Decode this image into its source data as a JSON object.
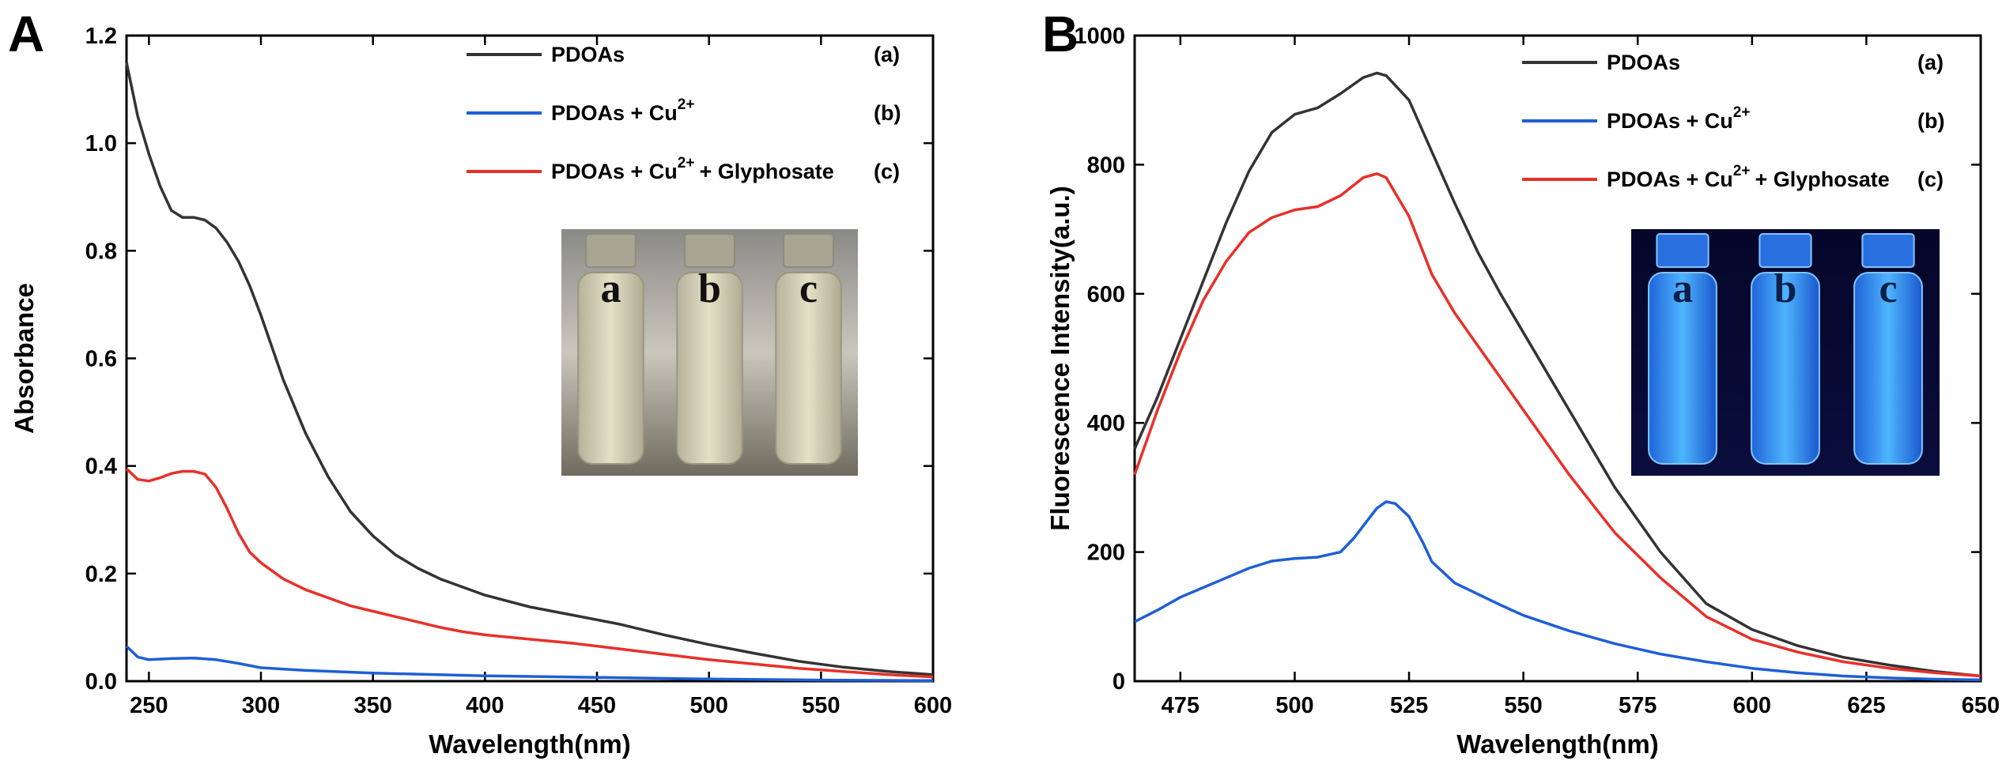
{
  "chart_data": [
    {
      "panel": "A",
      "type": "line",
      "xlabel": "Wavelength(nm)",
      "ylabel": "Absorbance",
      "xlim": [
        240,
        600
      ],
      "ylim": [
        0,
        1.2
      ],
      "xticks": [
        250,
        300,
        350,
        400,
        450,
        500,
        550,
        600
      ],
      "xtick_labels": [
        "250",
        "300",
        "350",
        "400",
        "450",
        "500",
        "550",
        "600"
      ],
      "yticks": [
        0,
        0.2,
        0.4,
        0.6,
        0.8,
        1.0,
        1.2
      ],
      "ytick_labels": [
        "0.0",
        "0.2",
        "0.4",
        "0.6",
        "0.8",
        "1.0",
        "1.2"
      ],
      "legend": [
        {
          "series": 0,
          "text": "PDOAs",
          "sup": "",
          "tail": "",
          "tag": "(a)"
        },
        {
          "series": 1,
          "text": "PDOAs + Cu",
          "sup": "2+",
          "tail": "",
          "tag": "(b)"
        },
        {
          "series": 2,
          "text": "PDOAs + Cu",
          "sup": "2+",
          "tail": "+ Glyphosate",
          "tag": "(c)"
        }
      ],
      "legend_position": "top-right",
      "inset": {
        "position": "center-right",
        "vial_labels": [
          "a",
          "b",
          "c"
        ],
        "style": "daylight"
      },
      "series": [
        {
          "color": "#333333",
          "x": [
            240,
            245,
            250,
            255,
            260,
            265,
            270,
            275,
            280,
            285,
            290,
            295,
            300,
            310,
            320,
            330,
            340,
            350,
            360,
            370,
            380,
            390,
            400,
            420,
            440,
            460,
            480,
            500,
            520,
            540,
            560,
            580,
            600
          ],
          "y": [
            1.15,
            1.05,
            0.98,
            0.92,
            0.875,
            0.862,
            0.862,
            0.857,
            0.842,
            0.815,
            0.78,
            0.735,
            0.68,
            0.56,
            0.46,
            0.38,
            0.315,
            0.27,
            0.235,
            0.21,
            0.19,
            0.175,
            0.16,
            0.138,
            0.122,
            0.106,
            0.086,
            0.068,
            0.052,
            0.037,
            0.026,
            0.018,
            0.012
          ]
        },
        {
          "color": "#1f5fd6",
          "x": [
            240,
            245,
            250,
            260,
            270,
            280,
            290,
            300,
            320,
            350,
            400,
            450,
            500,
            550,
            600
          ],
          "y": [
            0.065,
            0.045,
            0.04,
            0.042,
            0.043,
            0.04,
            0.033,
            0.025,
            0.02,
            0.015,
            0.01,
            0.007,
            0.004,
            0.002,
            0.001
          ]
        },
        {
          "color": "#e8302a",
          "x": [
            240,
            245,
            250,
            255,
            260,
            265,
            270,
            275,
            280,
            285,
            290,
            295,
            300,
            310,
            320,
            330,
            340,
            350,
            360,
            370,
            380,
            390,
            400,
            420,
            440,
            460,
            480,
            500,
            520,
            540,
            560,
            580,
            600
          ],
          "y": [
            0.395,
            0.375,
            0.372,
            0.378,
            0.386,
            0.39,
            0.39,
            0.385,
            0.36,
            0.32,
            0.275,
            0.24,
            0.22,
            0.19,
            0.17,
            0.155,
            0.14,
            0.13,
            0.12,
            0.11,
            0.1,
            0.092,
            0.086,
            0.078,
            0.07,
            0.06,
            0.05,
            0.04,
            0.032,
            0.024,
            0.018,
            0.012,
            0.008
          ]
        }
      ]
    },
    {
      "panel": "B",
      "type": "line",
      "xlabel": "Wavelength(nm)",
      "ylabel": "Fluorescence Intensity(a.u.)",
      "xlim": [
        465,
        650
      ],
      "ylim": [
        0,
        1000
      ],
      "xticks": [
        475,
        500,
        525,
        550,
        575,
        600,
        625,
        650
      ],
      "xtick_labels": [
        "475",
        "500",
        "525",
        "550",
        "575",
        "600",
        "625",
        "650"
      ],
      "yticks": [
        0,
        200,
        400,
        600,
        800,
        1000
      ],
      "ytick_labels": [
        "0",
        "200",
        "400",
        "600",
        "800",
        "1000"
      ],
      "legend": [
        {
          "series": 0,
          "text": "PDOAs",
          "sup": "",
          "tail": "",
          "tag": "(a)"
        },
        {
          "series": 1,
          "text": "PDOAs + Cu",
          "sup": "2+",
          "tail": "",
          "tag": "(b)"
        },
        {
          "series": 2,
          "text": "PDOAs + Cu",
          "sup": "2+",
          "tail": "+ Glyphosate",
          "tag": "(c)"
        }
      ],
      "legend_position": "top-right",
      "inset": {
        "position": "center-right",
        "vial_labels": [
          "a",
          "b",
          "c"
        ],
        "style": "uv"
      },
      "series": [
        {
          "color": "#333333",
          "x": [
            465,
            470,
            475,
            480,
            485,
            490,
            495,
            500,
            505,
            510,
            515,
            518,
            520,
            525,
            530,
            535,
            540,
            545,
            550,
            555,
            560,
            570,
            580,
            590,
            600,
            610,
            620,
            630,
            640,
            650
          ],
          "y": [
            360,
            440,
            530,
            620,
            710,
            790,
            850,
            878,
            888,
            910,
            935,
            942,
            938,
            900,
            820,
            740,
            665,
            600,
            540,
            480,
            420,
            300,
            200,
            120,
            80,
            55,
            37,
            25,
            15,
            8
          ]
        },
        {
          "color": "#1f5fd6",
          "x": [
            465,
            470,
            475,
            480,
            485,
            490,
            495,
            500,
            505,
            510,
            513,
            516,
            518,
            520,
            522,
            525,
            528,
            530,
            535,
            540,
            545,
            550,
            560,
            570,
            580,
            590,
            600,
            610,
            620,
            630,
            640,
            650
          ],
          "y": [
            92,
            110,
            130,
            145,
            160,
            175,
            186,
            190,
            192,
            200,
            222,
            250,
            268,
            278,
            275,
            255,
            215,
            185,
            152,
            135,
            118,
            102,
            78,
            58,
            42,
            30,
            20,
            13,
            8,
            5,
            3,
            2
          ]
        },
        {
          "color": "#e8302a",
          "x": [
            465,
            470,
            475,
            480,
            485,
            490,
            495,
            500,
            505,
            510,
            515,
            518,
            520,
            525,
            530,
            535,
            540,
            545,
            550,
            560,
            570,
            580,
            590,
            600,
            610,
            620,
            630,
            640,
            650
          ],
          "y": [
            320,
            420,
            510,
            590,
            650,
            695,
            718,
            730,
            735,
            752,
            780,
            786,
            780,
            720,
            630,
            570,
            520,
            470,
            420,
            320,
            230,
            160,
            100,
            65,
            45,
            30,
            20,
            13,
            8
          ]
        }
      ]
    }
  ],
  "panel_labels": {
    "a": "A",
    "b": "B"
  }
}
